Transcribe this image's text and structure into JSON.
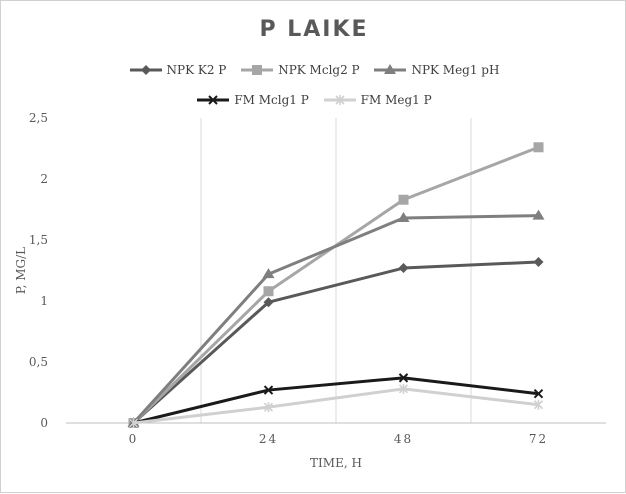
{
  "chart_data": {
    "type": "line",
    "title": "P LAIKE",
    "xlabel": "TIME, H",
    "ylabel": "P, MG/L",
    "categories": [
      "0",
      "24",
      "48",
      "72"
    ],
    "ylim": [
      0,
      2.5
    ],
    "yticks": [
      "0",
      "0,5",
      "1",
      "1,5",
      "2",
      "2,5"
    ],
    "grid": "vertical",
    "legend_position": "top",
    "series": [
      {
        "name": "NPK K2 P",
        "values": [
          0,
          0.99,
          1.27,
          1.32
        ],
        "color": "#595959",
        "marker": "diamond"
      },
      {
        "name": "NPK Mclg2 P",
        "values": [
          0,
          1.08,
          1.83,
          2.26
        ],
        "color": "#a6a6a6",
        "marker": "square"
      },
      {
        "name": "NPK Meg1 pH",
        "values": [
          0,
          1.22,
          1.68,
          1.7
        ],
        "color": "#7f7f7f",
        "marker": "triangle"
      },
      {
        "name": "FM Mclg1 P",
        "values": [
          0,
          0.27,
          0.37,
          0.24
        ],
        "color": "#1a1a1a",
        "marker": "x"
      },
      {
        "name": "FM Meg1 P",
        "values": [
          0,
          0.13,
          0.28,
          0.15
        ],
        "color": "#d0d0d0",
        "marker": "star"
      }
    ]
  }
}
